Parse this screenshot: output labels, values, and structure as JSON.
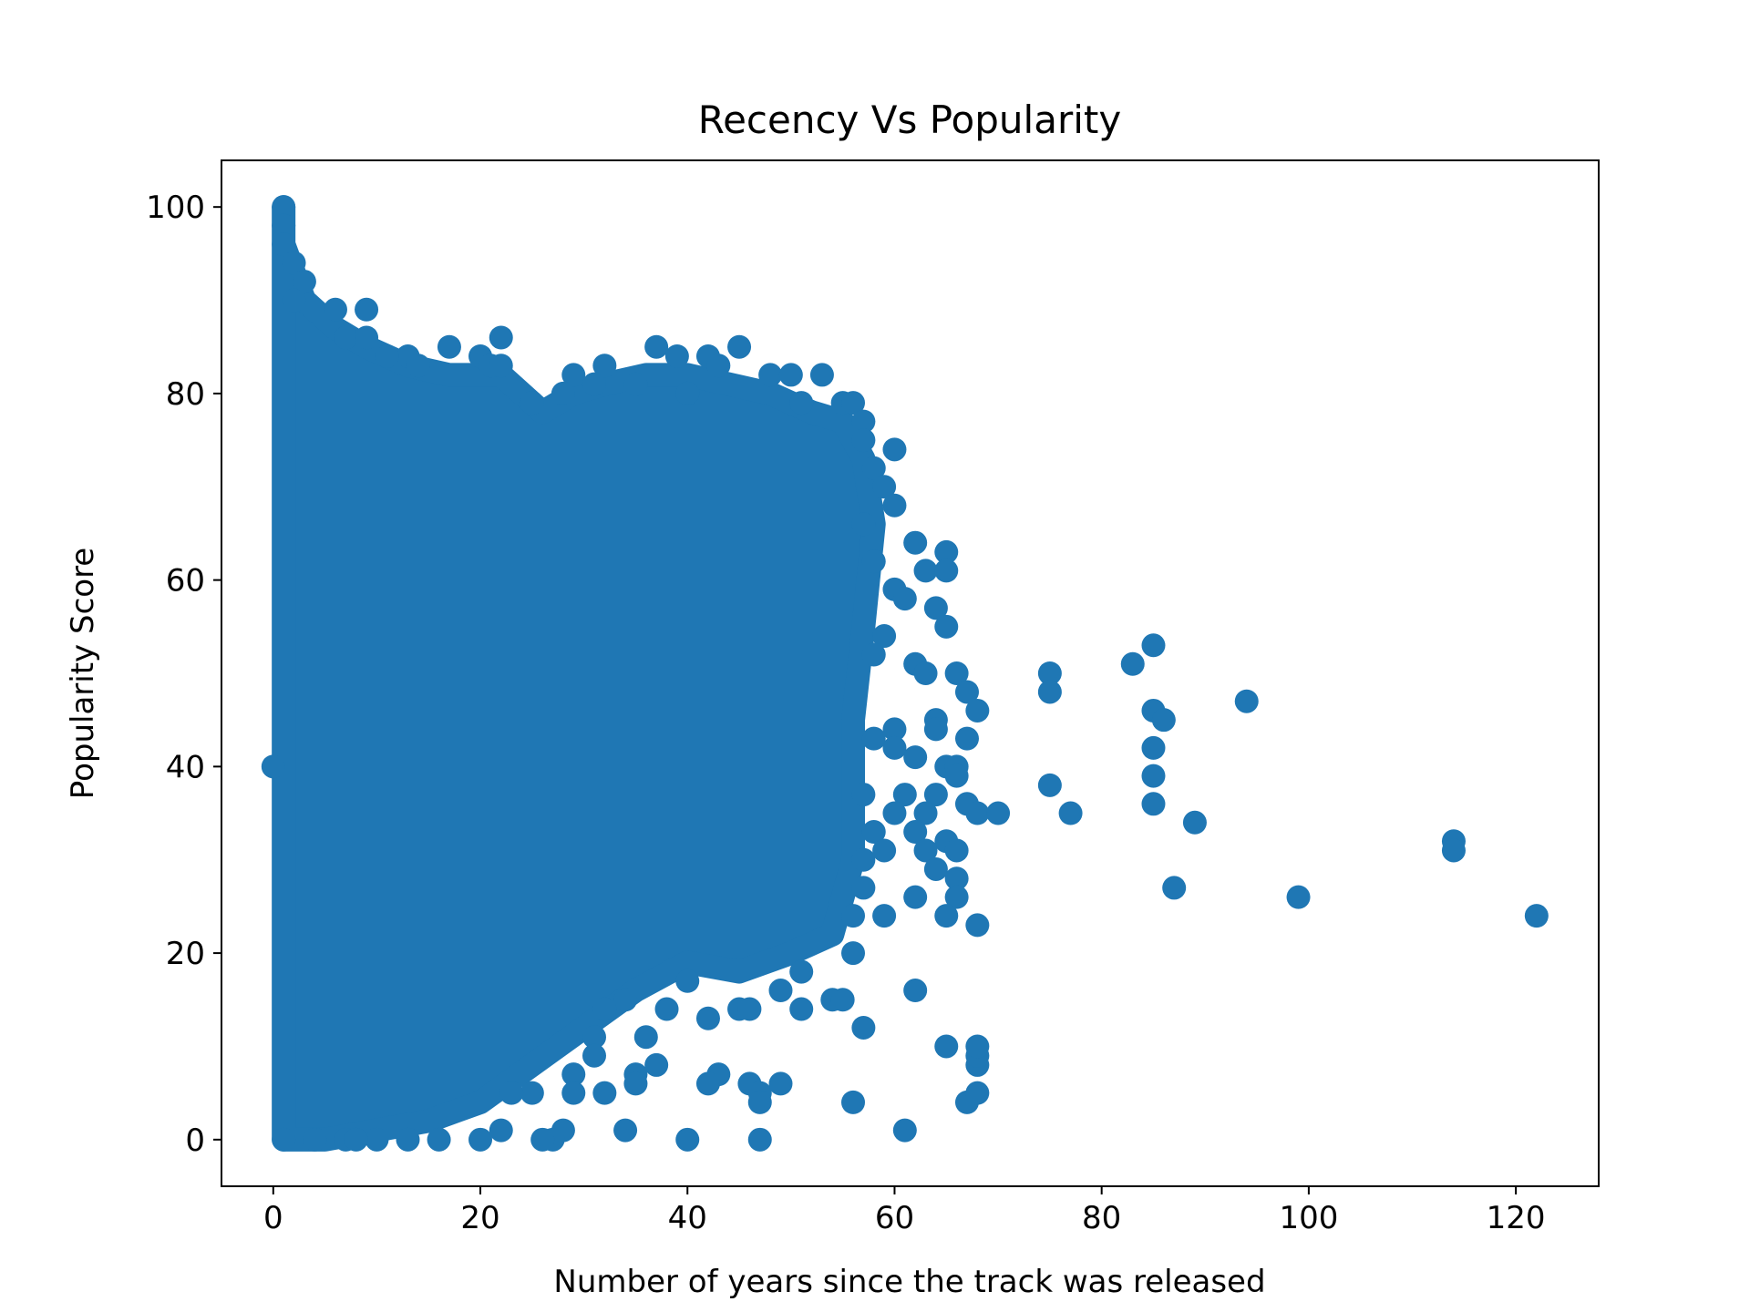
{
  "chart_data": {
    "type": "scatter",
    "title": "Recency Vs Popularity",
    "xlabel": "Number of years since the track was released",
    "ylabel": "Popularity Score",
    "xlim": [
      -5,
      128
    ],
    "ylim": [
      -5,
      105
    ],
    "xticks": [
      0,
      20,
      40,
      60,
      80,
      100,
      120
    ],
    "yticks": [
      0,
      20,
      40,
      60,
      80,
      100
    ],
    "grid": false,
    "marker_color": "#1f77b4",
    "series": [
      {
        "points": [
          [
            0,
            40
          ],
          [
            1,
            100
          ],
          [
            1,
            98
          ],
          [
            1,
            96
          ],
          [
            2,
            94
          ],
          [
            3,
            92
          ],
          [
            2,
            90
          ],
          [
            6,
            89
          ],
          [
            9,
            89
          ],
          [
            7,
            86
          ],
          [
            9,
            86
          ],
          [
            22,
            86
          ],
          [
            17,
            85
          ],
          [
            13,
            84
          ],
          [
            20,
            84
          ],
          [
            11,
            84
          ],
          [
            14,
            83
          ],
          [
            21,
            83
          ],
          [
            22,
            83
          ],
          [
            37,
            85
          ],
          [
            45,
            85
          ],
          [
            39,
            84
          ],
          [
            42,
            84
          ],
          [
            43,
            83
          ],
          [
            32,
            83
          ],
          [
            29,
            82
          ],
          [
            31,
            81
          ],
          [
            35,
            81
          ],
          [
            48,
            82
          ],
          [
            50,
            82
          ],
          [
            53,
            82
          ],
          [
            28,
            80
          ],
          [
            40,
            80
          ],
          [
            25,
            79
          ],
          [
            51,
            79
          ],
          [
            55,
            79
          ],
          [
            56,
            79
          ],
          [
            57,
            77
          ],
          [
            57,
            75
          ],
          [
            60,
            74
          ],
          [
            58,
            72
          ],
          [
            59,
            70
          ],
          [
            60,
            68
          ],
          [
            57,
            66
          ],
          [
            62,
            64
          ],
          [
            65,
            63
          ],
          [
            58,
            62
          ],
          [
            63,
            61
          ],
          [
            65,
            61
          ],
          [
            60,
            59
          ],
          [
            61,
            58
          ],
          [
            64,
            57
          ],
          [
            65,
            55
          ],
          [
            59,
            54
          ],
          [
            58,
            52
          ],
          [
            62,
            51
          ],
          [
            63,
            50
          ],
          [
            66,
            50
          ],
          [
            67,
            48
          ],
          [
            68,
            46
          ],
          [
            64,
            45
          ],
          [
            60,
            44
          ],
          [
            64,
            44
          ],
          [
            67,
            43
          ],
          [
            58,
            43
          ],
          [
            60,
            42
          ],
          [
            62,
            41
          ],
          [
            65,
            40
          ],
          [
            66,
            40
          ],
          [
            66,
            39
          ],
          [
            61,
            37
          ],
          [
            64,
            37
          ],
          [
            57,
            37
          ],
          [
            67,
            36
          ],
          [
            63,
            35
          ],
          [
            68,
            35
          ],
          [
            70,
            35
          ],
          [
            60,
            35
          ],
          [
            58,
            33
          ],
          [
            62,
            33
          ],
          [
            65,
            32
          ],
          [
            63,
            31
          ],
          [
            66,
            31
          ],
          [
            59,
            31
          ],
          [
            64,
            29
          ],
          [
            57,
            30
          ],
          [
            66,
            28
          ],
          [
            57,
            27
          ],
          [
            62,
            26
          ],
          [
            66,
            26
          ],
          [
            56,
            24
          ],
          [
            59,
            24
          ],
          [
            65,
            24
          ],
          [
            68,
            23
          ],
          [
            56,
            20
          ],
          [
            51,
            18
          ],
          [
            49,
            16
          ],
          [
            62,
            16
          ],
          [
            54,
            15
          ],
          [
            55,
            15
          ],
          [
            57,
            12
          ],
          [
            45,
            14
          ],
          [
            46,
            14
          ],
          [
            51,
            14
          ],
          [
            42,
            13
          ],
          [
            40,
            17
          ],
          [
            38,
            14
          ],
          [
            36,
            11
          ],
          [
            37,
            8
          ],
          [
            35,
            7
          ],
          [
            35,
            6
          ],
          [
            34,
            15
          ],
          [
            32,
            14
          ],
          [
            31,
            11
          ],
          [
            31,
            9
          ],
          [
            29,
            7
          ],
          [
            29,
            5
          ],
          [
            32,
            5
          ],
          [
            34,
            1
          ],
          [
            28,
            1
          ],
          [
            27,
            0
          ],
          [
            26,
            0
          ],
          [
            40,
            0
          ],
          [
            43,
            7
          ],
          [
            42,
            6
          ],
          [
            46,
            6
          ],
          [
            47,
            5
          ],
          [
            47,
            4
          ],
          [
            49,
            6
          ],
          [
            47,
            0
          ],
          [
            56,
            4
          ],
          [
            61,
            1
          ],
          [
            65,
            10
          ],
          [
            67,
            4
          ],
          [
            68,
            5
          ],
          [
            68,
            8
          ],
          [
            68,
            9
          ],
          [
            68,
            10
          ],
          [
            20,
            0
          ],
          [
            22,
            1
          ],
          [
            25,
            5
          ],
          [
            23,
            5
          ],
          [
            16,
            0
          ],
          [
            13,
            0
          ],
          [
            10,
            0
          ],
          [
            1,
            0
          ],
          [
            4,
            0
          ],
          [
            7,
            0
          ],
          [
            8,
            0
          ],
          [
            75,
            50
          ],
          [
            75,
            48
          ],
          [
            83,
            51
          ],
          [
            85,
            53
          ],
          [
            85,
            46
          ],
          [
            86,
            45
          ],
          [
            85,
            42
          ],
          [
            85,
            39
          ],
          [
            85,
            36
          ],
          [
            94,
            47
          ],
          [
            75,
            38
          ],
          [
            77,
            35
          ],
          [
            89,
            34
          ],
          [
            87,
            27
          ],
          [
            99,
            26
          ],
          [
            114,
            32
          ],
          [
            114,
            31
          ],
          [
            122,
            24
          ]
        ]
      }
    ]
  }
}
